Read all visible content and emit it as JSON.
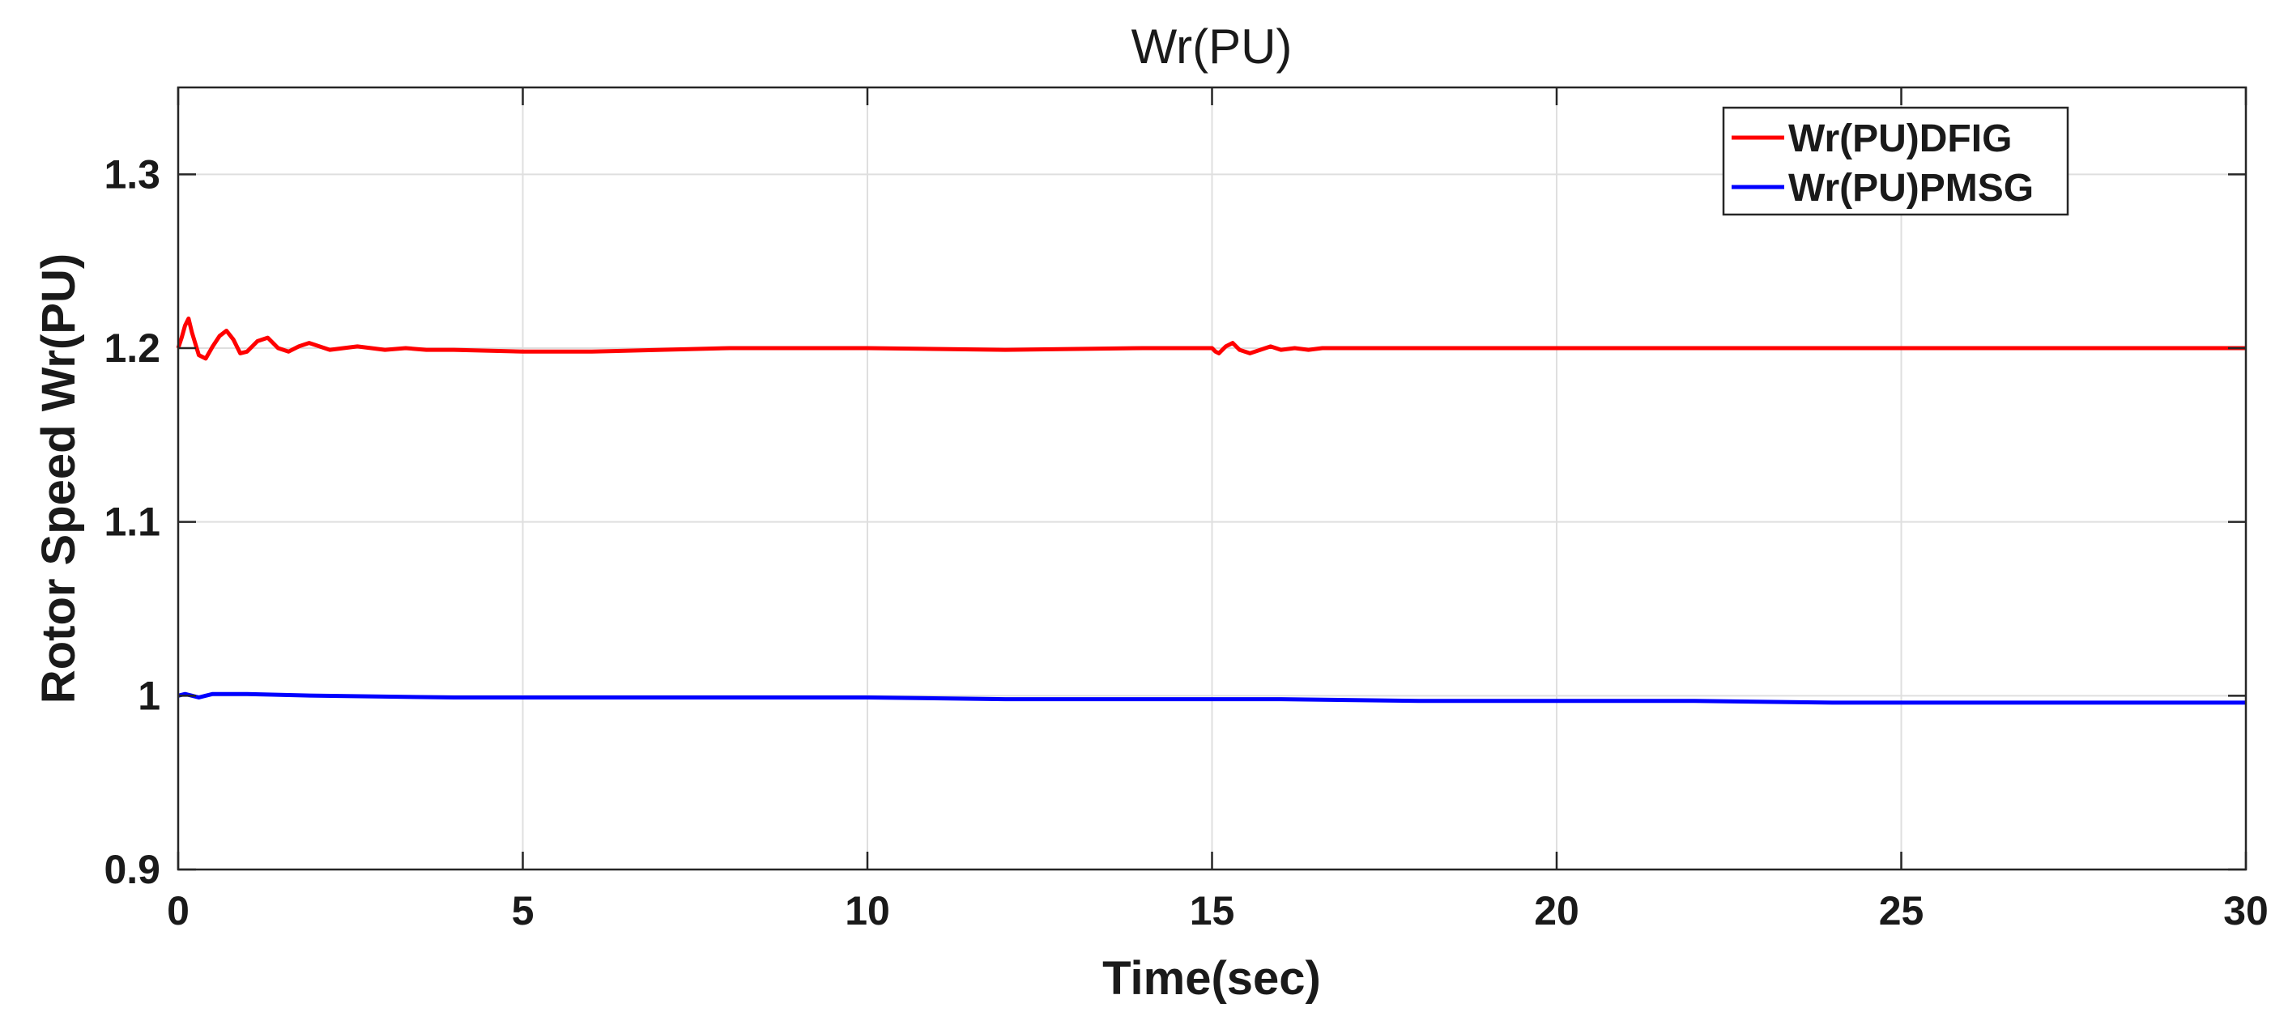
{
  "chart_data": {
    "type": "line",
    "title": "Wr(PU)",
    "xlabel": "Time(sec)",
    "ylabel": "Rotor Speed Wr(PU)",
    "xlim": [
      0,
      30
    ],
    "ylim": [
      0.9,
      1.35
    ],
    "xticks": [
      0,
      5,
      10,
      15,
      20,
      25,
      30
    ],
    "xtick_labels": [
      "0",
      "5",
      "10",
      "15",
      "20",
      "25",
      "30"
    ],
    "yticks": [
      0.9,
      1.0,
      1.1,
      1.2,
      1.3
    ],
    "ytick_labels": [
      "0.9",
      "1",
      "1.1",
      "1.2",
      "1.3"
    ],
    "grid": true,
    "legend_position": "top-right",
    "series": [
      {
        "name": "Wr(PU)DFIG",
        "color": "#ff0000",
        "x": [
          0,
          0.05,
          0.1,
          0.15,
          0.2,
          0.3,
          0.4,
          0.5,
          0.6,
          0.7,
          0.8,
          0.9,
          1.0,
          1.15,
          1.3,
          1.45,
          1.6,
          1.75,
          1.9,
          2.05,
          2.2,
          2.4,
          2.6,
          2.8,
          3.0,
          3.3,
          3.6,
          4.0,
          5.0,
          6.0,
          7.0,
          8.0,
          10.0,
          12.0,
          14.0,
          15.0,
          15.05,
          15.1,
          15.2,
          15.3,
          15.4,
          15.55,
          15.7,
          15.85,
          16.0,
          16.2,
          16.4,
          16.6,
          17.0,
          18.0,
          19.0,
          20.0,
          25.0,
          30.0
        ],
        "y": [
          1.2,
          1.206,
          1.213,
          1.217,
          1.209,
          1.196,
          1.194,
          1.201,
          1.207,
          1.21,
          1.205,
          1.197,
          1.198,
          1.204,
          1.206,
          1.2,
          1.198,
          1.201,
          1.203,
          1.201,
          1.199,
          1.2,
          1.201,
          1.2,
          1.199,
          1.2,
          1.199,
          1.199,
          1.198,
          1.198,
          1.199,
          1.2,
          1.2,
          1.199,
          1.2,
          1.2,
          1.198,
          1.197,
          1.201,
          1.203,
          1.199,
          1.197,
          1.199,
          1.201,
          1.199,
          1.2,
          1.199,
          1.2,
          1.2,
          1.2,
          1.2,
          1.2,
          1.2,
          1.2
        ]
      },
      {
        "name": "Wr(PU)PMSG",
        "color": "#0000ff",
        "x": [
          0,
          0.1,
          0.2,
          0.3,
          0.4,
          0.5,
          0.6,
          0.8,
          1.0,
          2.0,
          4.0,
          6.0,
          8.0,
          10.0,
          12.0,
          14.0,
          16.0,
          18.0,
          20.0,
          22.0,
          24.0,
          26.0,
          28.0,
          30.0
        ],
        "y": [
          1.0,
          1.001,
          1.0,
          0.999,
          1.0,
          1.001,
          1.001,
          1.001,
          1.001,
          1.0,
          0.999,
          0.999,
          0.999,
          0.999,
          0.998,
          0.998,
          0.998,
          0.997,
          0.997,
          0.997,
          0.996,
          0.996,
          0.996,
          0.996
        ]
      }
    ]
  }
}
